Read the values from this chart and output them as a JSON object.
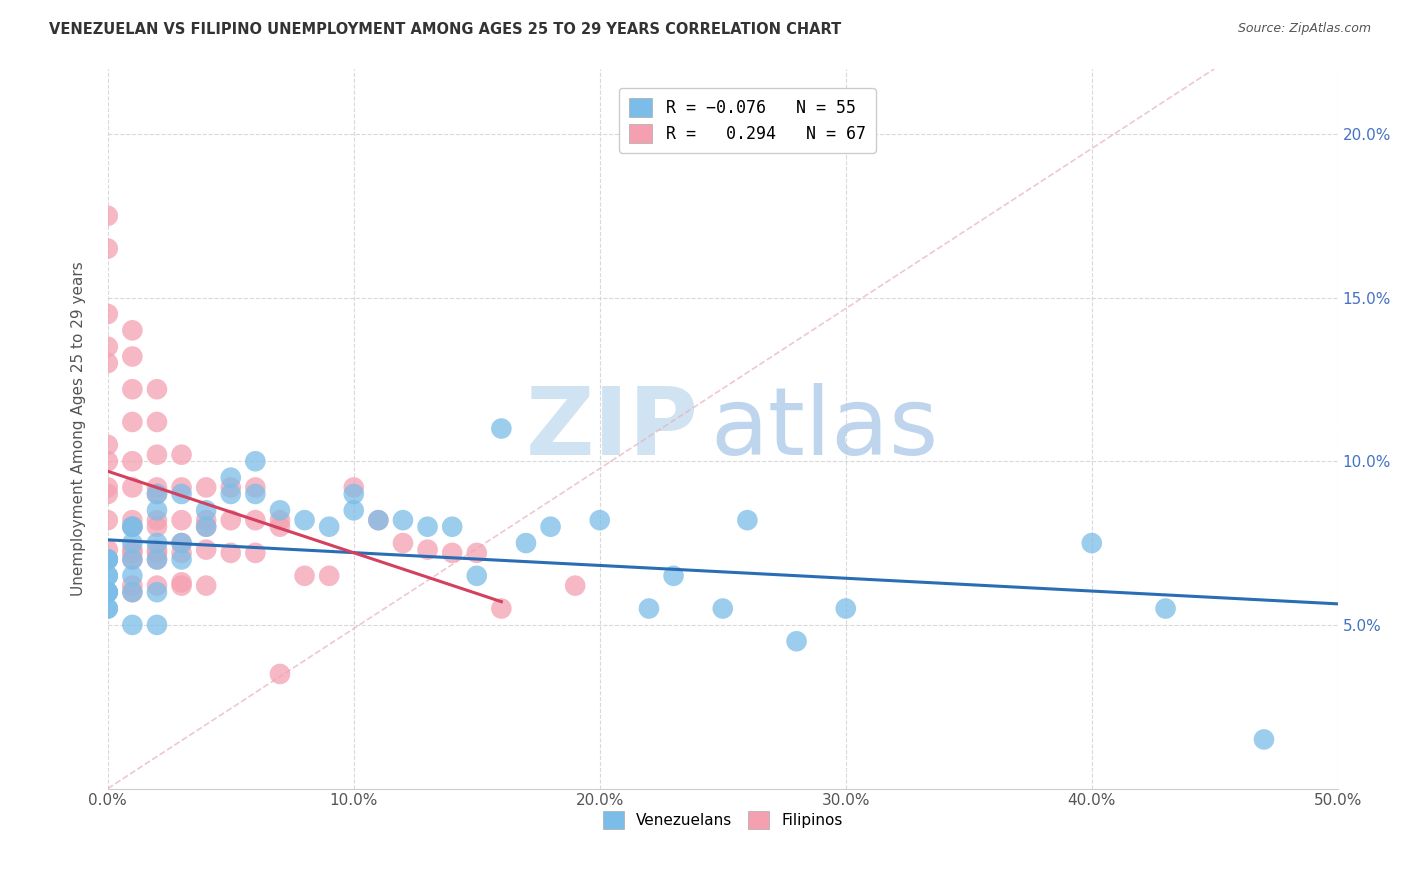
{
  "title": "VENEZUELAN VS FILIPINO UNEMPLOYMENT AMONG AGES 25 TO 29 YEARS CORRELATION CHART",
  "source": "Source: ZipAtlas.com",
  "ylabel": "Unemployment Among Ages 25 to 29 years",
  "xlim": [
    0.0,
    0.5
  ],
  "ylim": [
    0.0,
    0.22
  ],
  "xticks": [
    0.0,
    0.1,
    0.2,
    0.3,
    0.4,
    0.5
  ],
  "yticks": [
    0.05,
    0.1,
    0.15,
    0.2
  ],
  "xtick_labels": [
    "0.0%",
    "10.0%",
    "20.0%",
    "30.0%",
    "40.0%",
    "50.0%"
  ],
  "right_ytick_labels": [
    "5.0%",
    "10.0%",
    "15.0%",
    "20.0%"
  ],
  "venezuelan_color": "#7bbde8",
  "filipino_color": "#f4a0b0",
  "venezuelan_line_color": "#2a6db5",
  "filipino_line_color": "#d44060",
  "watermark_zip_color": "#c8dff0",
  "watermark_atlas_color": "#a8c8e8",
  "venezuelan_x": [
    0.0,
    0.0,
    0.0,
    0.0,
    0.0,
    0.0,
    0.0,
    0.0,
    0.0,
    0.0,
    0.01,
    0.01,
    0.01,
    0.01,
    0.01,
    0.01,
    0.01,
    0.02,
    0.02,
    0.02,
    0.02,
    0.02,
    0.02,
    0.03,
    0.03,
    0.03,
    0.04,
    0.04,
    0.05,
    0.05,
    0.06,
    0.06,
    0.07,
    0.08,
    0.09,
    0.1,
    0.1,
    0.11,
    0.12,
    0.13,
    0.14,
    0.15,
    0.16,
    0.17,
    0.18,
    0.2,
    0.22,
    0.23,
    0.25,
    0.26,
    0.28,
    0.3,
    0.4,
    0.43,
    0.47
  ],
  "venezuelan_y": [
    0.07,
    0.07,
    0.07,
    0.065,
    0.065,
    0.06,
    0.06,
    0.06,
    0.055,
    0.055,
    0.08,
    0.08,
    0.075,
    0.07,
    0.065,
    0.06,
    0.05,
    0.09,
    0.085,
    0.075,
    0.07,
    0.06,
    0.05,
    0.09,
    0.075,
    0.07,
    0.085,
    0.08,
    0.095,
    0.09,
    0.1,
    0.09,
    0.085,
    0.082,
    0.08,
    0.085,
    0.09,
    0.082,
    0.082,
    0.08,
    0.08,
    0.065,
    0.11,
    0.075,
    0.08,
    0.082,
    0.055,
    0.065,
    0.055,
    0.082,
    0.045,
    0.055,
    0.075,
    0.055,
    0.015
  ],
  "filipino_x": [
    0.0,
    0.0,
    0.0,
    0.0,
    0.0,
    0.0,
    0.0,
    0.0,
    0.0,
    0.0,
    0.0,
    0.0,
    0.01,
    0.01,
    0.01,
    0.01,
    0.01,
    0.01,
    0.01,
    0.01,
    0.01,
    0.01,
    0.01,
    0.01,
    0.01,
    0.02,
    0.02,
    0.02,
    0.02,
    0.02,
    0.02,
    0.02,
    0.02,
    0.02,
    0.02,
    0.02,
    0.03,
    0.03,
    0.03,
    0.03,
    0.03,
    0.03,
    0.03,
    0.04,
    0.04,
    0.04,
    0.04,
    0.04,
    0.05,
    0.05,
    0.05,
    0.06,
    0.06,
    0.06,
    0.07,
    0.07,
    0.07,
    0.08,
    0.09,
    0.1,
    0.11,
    0.12,
    0.13,
    0.14,
    0.15,
    0.16,
    0.19
  ],
  "filipino_y": [
    0.175,
    0.165,
    0.145,
    0.135,
    0.13,
    0.105,
    0.1,
    0.092,
    0.09,
    0.082,
    0.073,
    0.07,
    0.14,
    0.132,
    0.122,
    0.112,
    0.1,
    0.092,
    0.082,
    0.08,
    0.073,
    0.072,
    0.07,
    0.062,
    0.06,
    0.122,
    0.112,
    0.102,
    0.092,
    0.09,
    0.082,
    0.08,
    0.073,
    0.072,
    0.07,
    0.062,
    0.102,
    0.092,
    0.082,
    0.075,
    0.072,
    0.063,
    0.062,
    0.092,
    0.082,
    0.08,
    0.073,
    0.062,
    0.092,
    0.082,
    0.072,
    0.092,
    0.082,
    0.072,
    0.082,
    0.08,
    0.035,
    0.065,
    0.065,
    0.092,
    0.082,
    0.075,
    0.073,
    0.072,
    0.072,
    0.055,
    0.062
  ]
}
